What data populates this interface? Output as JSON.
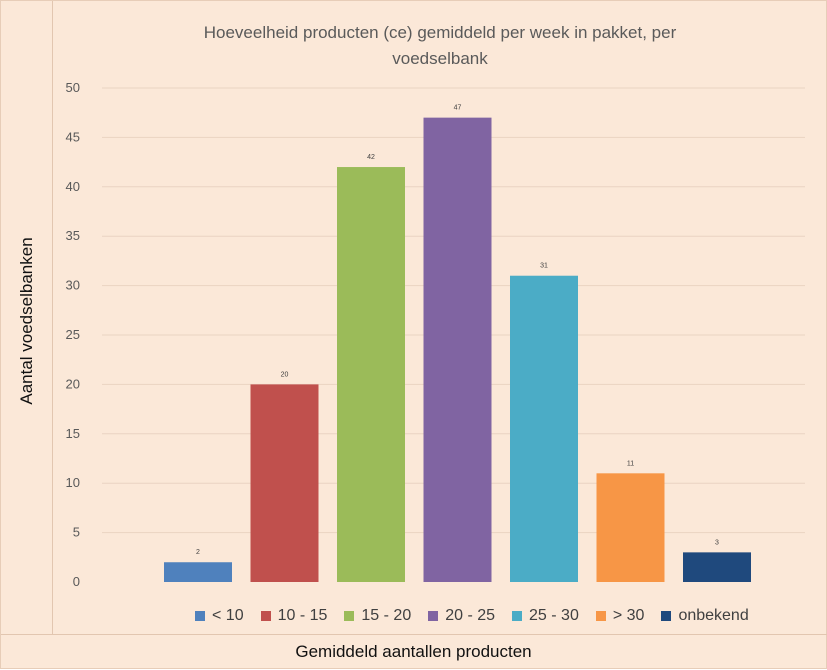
{
  "chart_data": {
    "type": "bar",
    "title": "Hoeveelheid producten (ce) gemiddeld per week in pakket, per voedselbank",
    "title_lines": [
      "Hoeveelheid producten (ce) gemiddeld per week in pakket, per",
      "voedselbank"
    ],
    "xlabel": "Gemiddeld aantallen producten",
    "ylabel": "Aantal voedselbanken",
    "ylim": [
      0,
      50
    ],
    "yticks": [
      "0",
      "5",
      "10",
      "15",
      "20",
      "25",
      "30",
      "35",
      "40",
      "45",
      "50"
    ],
    "grid": true,
    "legend_position": "bottom",
    "categories": [
      "< 10",
      "10 - 15",
      "15 - 20",
      "20 - 25",
      "25 - 30",
      "> 30",
      "onbekend"
    ],
    "values": [
      2,
      20,
      42,
      47,
      31,
      11,
      3
    ],
    "colors": [
      "#4f81bd",
      "#c0504d",
      "#9bbb59",
      "#8064a2",
      "#4bacc6",
      "#f79646",
      "#1f497d"
    ]
  }
}
